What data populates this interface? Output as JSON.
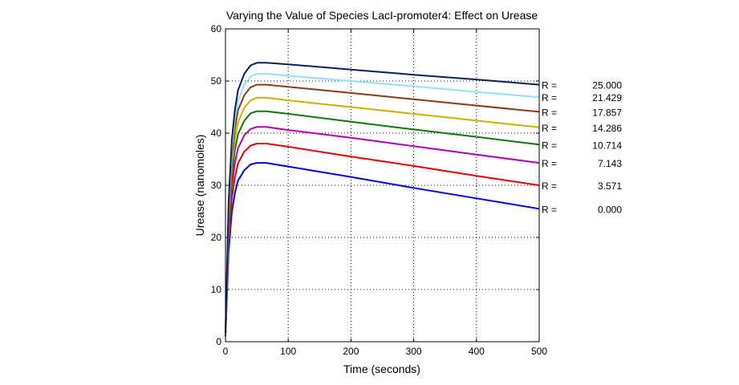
{
  "chart_data": {
    "type": "line",
    "title": "Varying the Value of Species LacI-promoter4: Effect on Urease",
    "xlabel": "Time (seconds)",
    "ylabel": "Urease (nanomoles)",
    "xlim": [
      0,
      500
    ],
    "ylim": [
      0,
      60
    ],
    "xticks": [
      0,
      100,
      200,
      300,
      400,
      500
    ],
    "yticks": [
      0,
      10,
      20,
      30,
      40,
      50,
      60
    ],
    "grid": true,
    "legend_prefix": "R =",
    "x": [
      0,
      5,
      10,
      15,
      20,
      30,
      40,
      50,
      65,
      100,
      200,
      300,
      400,
      500
    ],
    "series": [
      {
        "name": "0.000",
        "color": "#0000e6",
        "values": [
          1.0,
          17.2,
          24.7,
          28.5,
          30.9,
          32.9,
          34.0,
          34.3,
          34.3,
          33.6,
          31.6,
          29.5,
          27.5,
          25.5
        ]
      },
      {
        "name": "3.571",
        "color": "#e60000",
        "values": [
          1.1,
          19.0,
          27.4,
          31.5,
          34.2,
          36.5,
          37.6,
          38.0,
          38.0,
          37.4,
          35.5,
          33.7,
          31.8,
          30.0
        ]
      },
      {
        "name": "7.143",
        "color": "#b000b8",
        "values": [
          1.2,
          20.6,
          29.7,
          34.2,
          37.1,
          39.6,
          40.8,
          41.2,
          41.2,
          40.6,
          39.1,
          37.5,
          35.9,
          34.3
        ]
      },
      {
        "name": "10.714",
        "color": "#0a7a0a",
        "values": [
          1.3,
          22.1,
          31.8,
          36.7,
          39.8,
          42.4,
          43.8,
          44.2,
          44.2,
          43.7,
          42.2,
          40.7,
          39.3,
          37.8
        ]
      },
      {
        "name": "14.286",
        "color": "#c8b400",
        "values": [
          1.4,
          23.4,
          33.7,
          38.8,
          42.1,
          44.9,
          46.3,
          46.8,
          46.8,
          46.3,
          45.0,
          43.7,
          42.4,
          41.1
        ]
      },
      {
        "name": "17.857",
        "color": "#8b3a10",
        "values": [
          1.5,
          24.7,
          35.5,
          40.9,
          44.4,
          47.3,
          48.8,
          49.3,
          49.3,
          48.9,
          47.7,
          46.5,
          45.3,
          44.1
        ]
      },
      {
        "name": "21.429",
        "color": "#90e4f0",
        "values": [
          1.5,
          25.7,
          37.0,
          42.7,
          46.3,
          49.3,
          50.9,
          51.4,
          51.4,
          51.0,
          50.0,
          49.0,
          47.9,
          46.9
        ]
      },
      {
        "name": "25.000",
        "color": "#0c1f5c",
        "values": [
          1.6,
          26.8,
          38.5,
          44.4,
          48.2,
          51.4,
          53.0,
          53.5,
          53.5,
          53.2,
          52.2,
          51.2,
          50.3,
          49.3
        ]
      }
    ]
  }
}
